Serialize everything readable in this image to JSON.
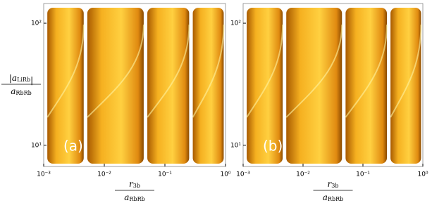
{
  "chart_data": [
    {
      "type": "surface",
      "panel_label": "(a)",
      "x_label": {
        "symbol": "r",
        "subscript": "3b",
        "denominator_symbol": "a",
        "denominator_subscript": "RbRb"
      },
      "y_label": {
        "symbol": "|a",
        "subscript": "LiRb",
        "close": "|",
        "denominator_symbol": "a",
        "denominator_subscript": "RbRb"
      },
      "x_log": true,
      "y_log": true,
      "xlim": [
        0.001,
        1
      ],
      "ylim": [
        6.7,
        145
      ],
      "xticks": [
        {
          "value": 0.001,
          "label": "10⁻³"
        },
        {
          "value": 0.01,
          "label": "10⁻²"
        },
        {
          "value": 0.1,
          "label": "10⁻¹"
        },
        {
          "value": 1,
          "label": "10⁰"
        }
      ],
      "yticks": [
        {
          "value": 10,
          "label": "10¹"
        },
        {
          "value": 100,
          "label": "10²"
        }
      ],
      "color": "#f0a020"
    },
    {
      "type": "surface",
      "panel_label": "(b)",
      "x_label": {
        "symbol": "r",
        "subscript": "3b",
        "denominator_symbol": "a",
        "denominator_subscript": "RbRb"
      },
      "x_log": true,
      "y_log": true,
      "xlim": [
        0.001,
        1
      ],
      "ylim": [
        6.7,
        145
      ],
      "xticks": [
        {
          "value": 0.001,
          "label": "10⁻³"
        },
        {
          "value": 0.01,
          "label": "10⁻²"
        },
        {
          "value": 0.1,
          "label": "10⁻¹"
        },
        {
          "value": 1,
          "label": "10⁰"
        }
      ],
      "yticks": [
        {
          "value": 10,
          "label": "10¹"
        },
        {
          "value": 100,
          "label": "10²"
        }
      ],
      "color": "#f0a020"
    }
  ]
}
